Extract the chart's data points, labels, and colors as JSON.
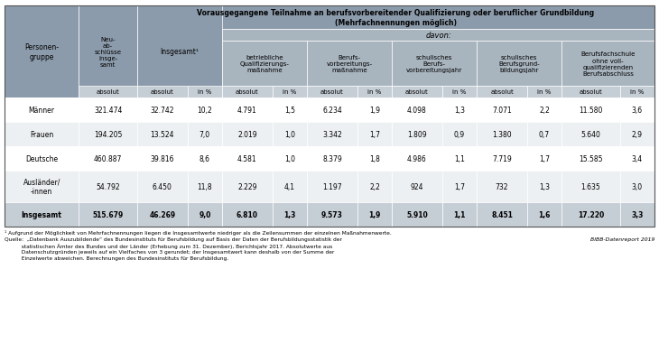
{
  "title_line1": "Vorausgegangene Teilnahme an berufsvorbereitender Qualifizierung oder beruflicher Grundbildung",
  "title_line2": "(Mehrfachnennungen möglich)",
  "davon_label": "davon:",
  "subheader_absolut": "absolut",
  "subheader_in_pct": "in %",
  "rows": [
    {
      "gruppe": "Männer",
      "neuabschluesse": "321.474",
      "insgesamt_abs": "32.742",
      "insgesamt_pct": "10,2",
      "betriebliche_abs": "4.791",
      "betriebliche_pct": "1,5",
      "berufsvorb_abs": "6.234",
      "berufsvorb_pct": "1,9",
      "schulisches_berufs_abs": "4.098",
      "schulisches_berufs_pct": "1,3",
      "schulisches_bg_abs": "7.071",
      "schulisches_bg_pct": "2,2",
      "berufsfach_abs": "11.580",
      "berufsfach_pct": "3,6",
      "bold": false
    },
    {
      "gruppe": "Frauen",
      "neuabschluesse": "194.205",
      "insgesamt_abs": "13.524",
      "insgesamt_pct": "7,0",
      "betriebliche_abs": "2.019",
      "betriebliche_pct": "1,0",
      "berufsvorb_abs": "3.342",
      "berufsvorb_pct": "1,7",
      "schulisches_berufs_abs": "1.809",
      "schulisches_berufs_pct": "0,9",
      "schulisches_bg_abs": "1.380",
      "schulisches_bg_pct": "0,7",
      "berufsfach_abs": "5.640",
      "berufsfach_pct": "2,9",
      "bold": false
    },
    {
      "gruppe": "Deutsche",
      "neuabschluesse": "460.887",
      "insgesamt_abs": "39.816",
      "insgesamt_pct": "8,6",
      "betriebliche_abs": "4.581",
      "betriebliche_pct": "1,0",
      "berufsvorb_abs": "8.379",
      "berufsvorb_pct": "1,8",
      "schulisches_berufs_abs": "4.986",
      "schulisches_berufs_pct": "1,1",
      "schulisches_bg_abs": "7.719",
      "schulisches_bg_pct": "1,7",
      "berufsfach_abs": "15.585",
      "berufsfach_pct": "3,4",
      "bold": false
    },
    {
      "gruppe": "Ausländer/\n-innen",
      "neuabschluesse": "54.792",
      "insgesamt_abs": "6.450",
      "insgesamt_pct": "11,8",
      "betriebliche_abs": "2.229",
      "betriebliche_pct": "4,1",
      "berufsvorb_abs": "1.197",
      "berufsvorb_pct": "2,2",
      "schulisches_berufs_abs": "924",
      "schulisches_berufs_pct": "1,7",
      "schulisches_bg_abs": "732",
      "schulisches_bg_pct": "1,3",
      "berufsfach_abs": "1.635",
      "berufsfach_pct": "3,0",
      "bold": false
    },
    {
      "gruppe": "Insgesamt",
      "neuabschluesse": "515.679",
      "insgesamt_abs": "46.269",
      "insgesamt_pct": "9,0",
      "betriebliche_abs": "6.810",
      "betriebliche_pct": "1,3",
      "berufsvorb_abs": "9.573",
      "berufsvorb_pct": "1,9",
      "schulisches_berufs_abs": "5.910",
      "schulisches_berufs_pct": "1,1",
      "schulisches_bg_abs": "8.451",
      "schulisches_bg_pct": "1,6",
      "berufsfach_abs": "17.220",
      "berufsfach_pct": "3,3",
      "bold": true
    }
  ],
  "footnote1": "¹ Aufgrund der Möglichkeit von Mehrfachnennungen liegen die Insgesamtwerte niedriger als die Zeilensummen der einzelnen Maßnahmenwerte.",
  "footnote2": "Quelle:  „Datenbank Auszubildende“ des Bundesinstituts für Berufsbildung auf Basis der Daten der Berufsbildungsstatistik der\n          statistischen Ämter des Bundes und der Länder (Erhebung zum 31. Dezember), Berichtsjahr 2017. Absolutwerte aus\n          Datenschutzgründen jeweils auf ein Vielfaches von 3 gerundet; der Insgesamtwert kann deshalb von der Summe der\n          Einzelwerte abweichen. Berechnungen des Bundesinstituts für Berufsbildung.",
  "bibb_label": "BIBB-Datenreport 2019",
  "color_header_dark": "#8c9bab",
  "color_header_medium": "#a8b4be",
  "color_header_light": "#c5cdd5",
  "color_row_even": "#ffffff",
  "color_row_odd": "#edf0f2",
  "color_row_last": "#c5cdd5",
  "color_border": "#ffffff"
}
